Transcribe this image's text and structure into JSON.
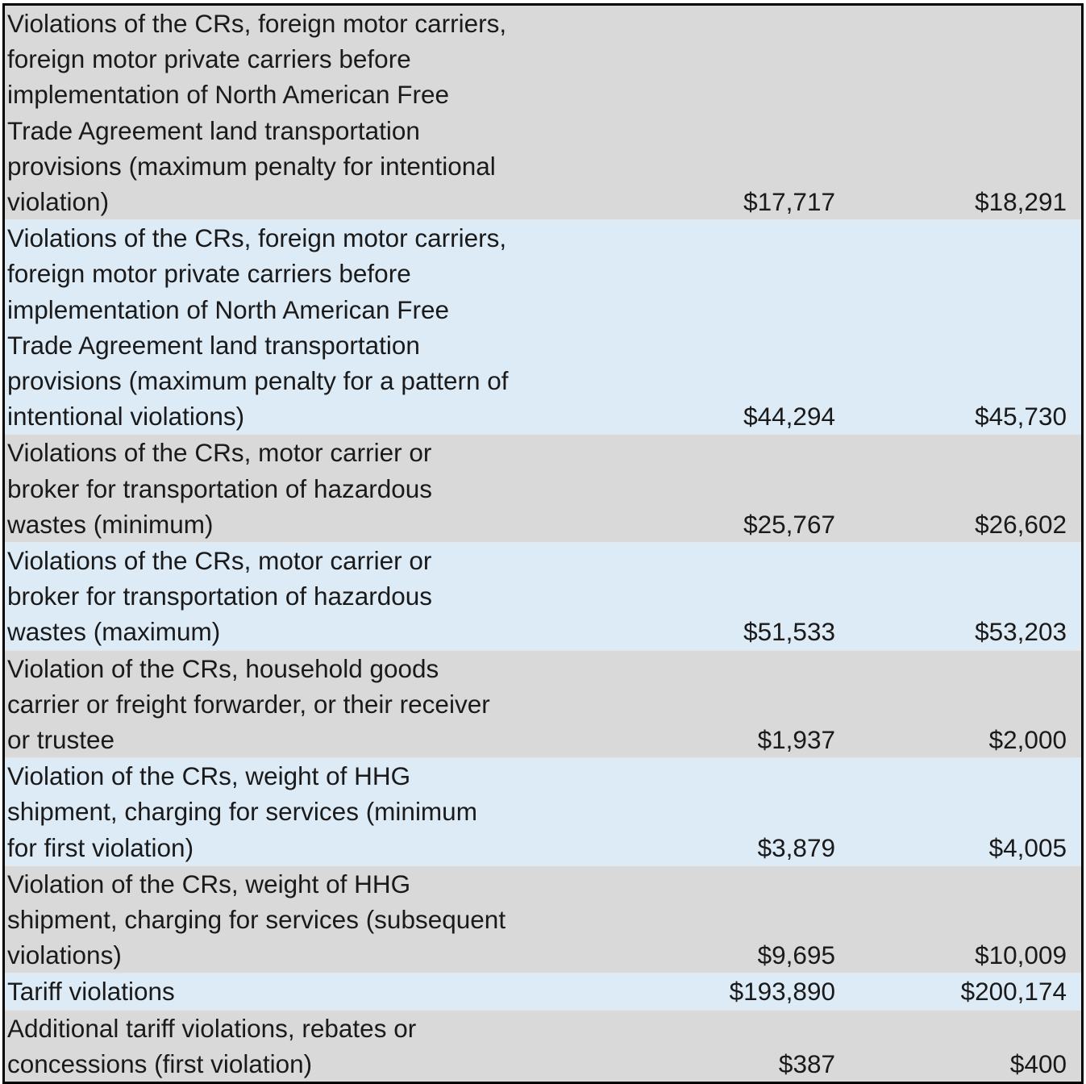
{
  "rows": [
    {
      "label": "Violations of the CRs, foreign motor carriers,\nforeign motor private carriers before\nimplementation of North American Free\nTrade Agreement land transportation\nprovisions (maximum penalty for intentional\nviolation)",
      "value1": "$17,717",
      "value2": "$18,291"
    },
    {
      "label": "Violations of the CRs, foreign motor carriers,\nforeign motor private carriers before\nimplementation of North American Free\nTrade Agreement land transportation\nprovisions (maximum penalty for a pattern of\nintentional violations)",
      "value1": "$44,294",
      "value2": "$45,730"
    },
    {
      "label": "Violations of the CRs, motor carrier or\nbroker for transportation of hazardous\nwastes (minimum)",
      "value1": "$25,767",
      "value2": "$26,602"
    },
    {
      "label": "Violations of the CRs, motor carrier or\nbroker for transportation of hazardous\nwastes (maximum)",
      "value1": "$51,533",
      "value2": "$53,203"
    },
    {
      "label": "Violation of the CRs, household goods\ncarrier or freight forwarder, or their receiver\nor trustee",
      "value1": "$1,937",
      "value2": "$2,000"
    },
    {
      "label": "Violation of the CRs, weight of HHG\nshipment, charging for services (minimum\nfor first violation)",
      "value1": "$3,879",
      "value2": "$4,005"
    },
    {
      "label": "Violation of the CRs, weight of HHG\nshipment, charging for services (subsequent\nviolations)",
      "value1": "$9,695",
      "value2": "$10,009"
    },
    {
      "label": "Tariff violations",
      "value1": "$193,890",
      "value2": "$200,174"
    },
    {
      "label": "Additional tariff violations, rebates or\nconcessions (first violation)",
      "value1": "$387",
      "value2": "$400"
    }
  ],
  "colors": {
    "row_gray": "#d9d9d9",
    "row_blue": "#ddebf7",
    "border": "#000000"
  }
}
